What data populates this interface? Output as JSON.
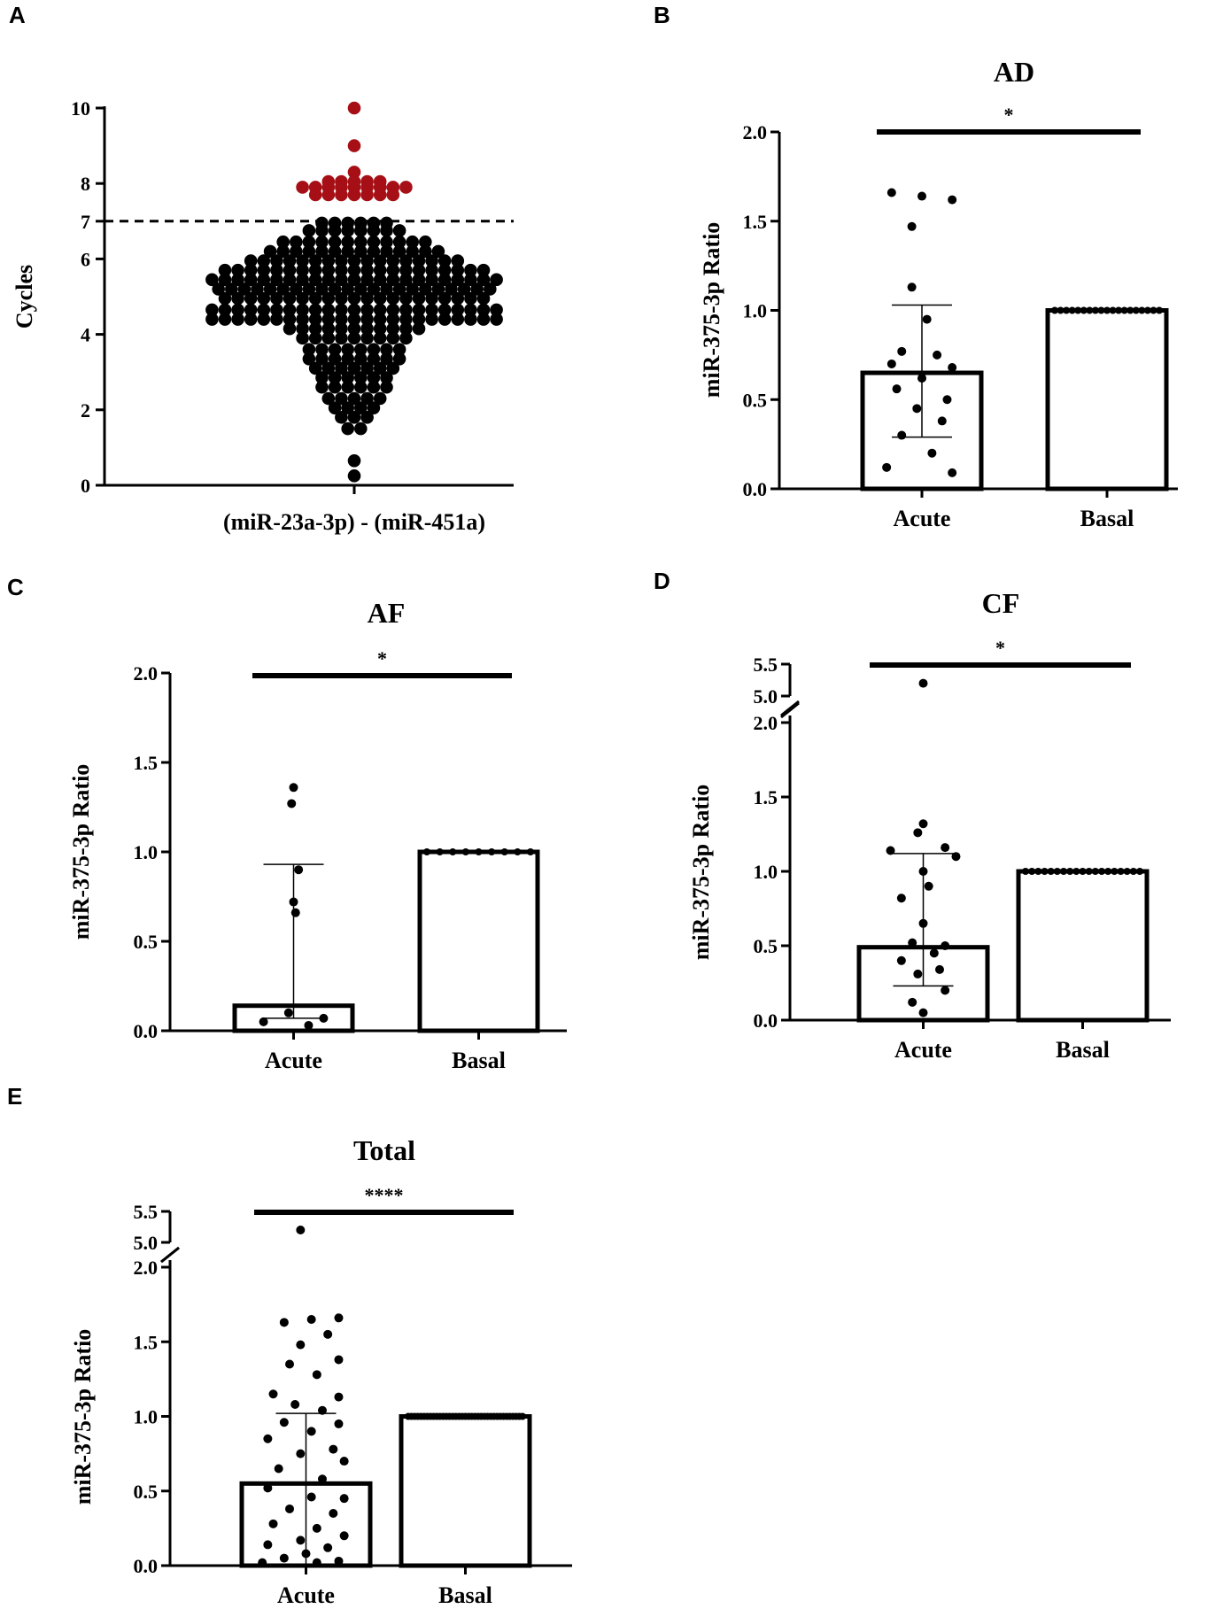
{
  "chart_data": [
    {
      "panel": "A",
      "type": "scatter",
      "title": "",
      "xlabel": "(miR-23a-3p) - (miR-451a)",
      "ylabel": "Cycles",
      "ylim": [
        0,
        10
      ],
      "yticks": [
        0,
        2,
        4,
        6,
        7,
        8,
        10
      ],
      "threshold": 7,
      "colors": {
        "below": "#000000",
        "above": "#a50f15"
      },
      "rows": [
        {
          "y": 10.0,
          "n": 1
        },
        {
          "y": 9.0,
          "n": 1
        },
        {
          "y": 8.3,
          "n": 1
        },
        {
          "y": 8.05,
          "n": 5
        },
        {
          "y": 7.9,
          "n": 9
        },
        {
          "y": 7.7,
          "n": 7
        },
        {
          "y": 6.95,
          "n": 6
        },
        {
          "y": 6.75,
          "n": 8
        },
        {
          "y": 6.45,
          "n": 12
        },
        {
          "y": 6.2,
          "n": 14
        },
        {
          "y": 5.95,
          "n": 17
        },
        {
          "y": 5.7,
          "n": 21
        },
        {
          "y": 5.45,
          "n": 23
        },
        {
          "y": 5.2,
          "n": 22
        },
        {
          "y": 4.95,
          "n": 21
        },
        {
          "y": 4.65,
          "n": 23
        },
        {
          "y": 4.4,
          "n": 23
        },
        {
          "y": 4.15,
          "n": 11
        },
        {
          "y": 3.9,
          "n": 9
        },
        {
          "y": 3.6,
          "n": 8
        },
        {
          "y": 3.35,
          "n": 8
        },
        {
          "y": 3.1,
          "n": 7
        },
        {
          "y": 2.85,
          "n": 6
        },
        {
          "y": 2.6,
          "n": 6
        },
        {
          "y": 2.3,
          "n": 5
        },
        {
          "y": 2.05,
          "n": 4
        },
        {
          "y": 1.8,
          "n": 3
        },
        {
          "y": 1.5,
          "n": 2
        },
        {
          "y": 0.65,
          "n": 1
        },
        {
          "y": 0.25,
          "n": 1
        }
      ]
    },
    {
      "panel": "B",
      "type": "bar",
      "title": "AD",
      "ylabel": "miR-375-3p Ratio",
      "categories": [
        "Acute",
        "Basal"
      ],
      "values": [
        0.65,
        1.0
      ],
      "error_low": [
        0.29,
        null
      ],
      "error_high": [
        1.03,
        null
      ],
      "ylim": [
        0,
        2.0
      ],
      "yticks": [
        "0.0",
        "0.5",
        "1.0",
        "1.5",
        "2.0"
      ],
      "significance": "*",
      "points": [
        {
          "v": 1.66,
          "dx": -0.3
        },
        {
          "v": 1.64,
          "dx": 0.0
        },
        {
          "v": 1.62,
          "dx": 0.3
        },
        {
          "v": 1.47,
          "dx": -0.1
        },
        {
          "v": 1.13,
          "dx": -0.1
        },
        {
          "v": 0.95,
          "dx": 0.05
        },
        {
          "v": 0.77,
          "dx": -0.2
        },
        {
          "v": 0.75,
          "dx": 0.15
        },
        {
          "v": 0.7,
          "dx": -0.3
        },
        {
          "v": 0.68,
          "dx": 0.3
        },
        {
          "v": 0.62,
          "dx": 0.0
        },
        {
          "v": 0.56,
          "dx": -0.25
        },
        {
          "v": 0.5,
          "dx": 0.25
        },
        {
          "v": 0.45,
          "dx": -0.05
        },
        {
          "v": 0.38,
          "dx": 0.2
        },
        {
          "v": 0.3,
          "dx": -0.2
        },
        {
          "v": 0.2,
          "dx": 0.1
        },
        {
          "v": 0.12,
          "dx": -0.35
        },
        {
          "v": 0.09,
          "dx": 0.3
        }
      ],
      "basal_n": 19
    },
    {
      "panel": "C",
      "type": "bar",
      "title": "AF",
      "ylabel": "miR-375-3p Ratio",
      "categories": [
        "Acute",
        "Basal"
      ],
      "values": [
        0.14,
        1.0
      ],
      "error_low": [
        0.07,
        null
      ],
      "error_high": [
        0.93,
        null
      ],
      "ylim": [
        0,
        2.0
      ],
      "yticks": [
        "0.0",
        "0.5",
        "1.0",
        "1.5",
        "2.0"
      ],
      "significance": "*",
      "points": [
        {
          "v": 1.36,
          "dx": 0.0
        },
        {
          "v": 1.27,
          "dx": -0.02
        },
        {
          "v": 0.9,
          "dx": 0.05
        },
        {
          "v": 0.72,
          "dx": 0.0
        },
        {
          "v": 0.66,
          "dx": 0.02
        },
        {
          "v": 0.1,
          "dx": -0.05
        },
        {
          "v": 0.07,
          "dx": 0.3
        },
        {
          "v": 0.05,
          "dx": -0.3
        },
        {
          "v": 0.03,
          "dx": 0.15
        }
      ],
      "basal_n": 9
    },
    {
      "panel": "D",
      "type": "bar",
      "title": "CF",
      "ylabel": "miR-375-3p Ratio",
      "categories": [
        "Acute",
        "Basal"
      ],
      "values": [
        0.49,
        1.0
      ],
      "error_low": [
        0.23,
        null
      ],
      "error_high": [
        1.12,
        null
      ],
      "ylim": [
        0,
        2.0
      ],
      "yticks": [
        "0.0",
        "0.5",
        "1.0",
        "1.5",
        "2.0"
      ],
      "broken_axis_ticks": [
        "5.0",
        "5.5"
      ],
      "significance": "*",
      "points": [
        {
          "v": 5.2,
          "dx": 0.0,
          "upper": true
        },
        {
          "v": 1.32,
          "dx": 0.0
        },
        {
          "v": 1.26,
          "dx": -0.05
        },
        {
          "v": 1.16,
          "dx": 0.2
        },
        {
          "v": 1.14,
          "dx": -0.3
        },
        {
          "v": 1.1,
          "dx": 0.3
        },
        {
          "v": 1.0,
          "dx": 0.0
        },
        {
          "v": 0.9,
          "dx": 0.05
        },
        {
          "v": 0.82,
          "dx": -0.2
        },
        {
          "v": 0.65,
          "dx": 0.0
        },
        {
          "v": 0.52,
          "dx": -0.1
        },
        {
          "v": 0.5,
          "dx": 0.2
        },
        {
          "v": 0.45,
          "dx": 0.1
        },
        {
          "v": 0.4,
          "dx": -0.2
        },
        {
          "v": 0.34,
          "dx": 0.15
        },
        {
          "v": 0.31,
          "dx": -0.05
        },
        {
          "v": 0.2,
          "dx": 0.2
        },
        {
          "v": 0.12,
          "dx": -0.1
        },
        {
          "v": 0.05,
          "dx": 0.0
        }
      ],
      "basal_n": 19
    },
    {
      "panel": "E",
      "type": "bar",
      "title": "Total",
      "ylabel": "miR-375-3p Ratio",
      "categories": [
        "Acute",
        "Basal"
      ],
      "values": [
        0.55,
        1.0
      ],
      "error_high": [
        1.02,
        null
      ],
      "ylim": [
        0,
        2.0
      ],
      "yticks": [
        "0.0",
        "0.5",
        "1.0",
        "1.5",
        "2.0"
      ],
      "broken_axis_ticks": [
        "5.0",
        "5.5"
      ],
      "significance": "****",
      "points": [
        {
          "v": 5.2,
          "dx": -0.05,
          "upper": true
        },
        {
          "v": 1.66,
          "dx": 0.3
        },
        {
          "v": 1.65,
          "dx": 0.05
        },
        {
          "v": 1.63,
          "dx": -0.2
        },
        {
          "v": 1.55,
          "dx": 0.2
        },
        {
          "v": 1.48,
          "dx": -0.05
        },
        {
          "v": 1.38,
          "dx": 0.3
        },
        {
          "v": 1.35,
          "dx": -0.15
        },
        {
          "v": 1.28,
          "dx": 0.1
        },
        {
          "v": 1.15,
          "dx": -0.3
        },
        {
          "v": 1.13,
          "dx": 0.3
        },
        {
          "v": 1.08,
          "dx": -0.1
        },
        {
          "v": 1.04,
          "dx": 0.15
        },
        {
          "v": 0.96,
          "dx": -0.2
        },
        {
          "v": 0.95,
          "dx": 0.3
        },
        {
          "v": 0.9,
          "dx": 0.05
        },
        {
          "v": 0.85,
          "dx": -0.35
        },
        {
          "v": 0.78,
          "dx": 0.25
        },
        {
          "v": 0.75,
          "dx": -0.05
        },
        {
          "v": 0.7,
          "dx": 0.35
        },
        {
          "v": 0.65,
          "dx": -0.25
        },
        {
          "v": 0.58,
          "dx": 0.15
        },
        {
          "v": 0.52,
          "dx": -0.35
        },
        {
          "v": 0.46,
          "dx": 0.05
        },
        {
          "v": 0.45,
          "dx": 0.35
        },
        {
          "v": 0.38,
          "dx": -0.15
        },
        {
          "v": 0.35,
          "dx": 0.25
        },
        {
          "v": 0.28,
          "dx": -0.3
        },
        {
          "v": 0.25,
          "dx": 0.1
        },
        {
          "v": 0.2,
          "dx": 0.35
        },
        {
          "v": 0.17,
          "dx": -0.05
        },
        {
          "v": 0.14,
          "dx": -0.35
        },
        {
          "v": 0.12,
          "dx": 0.2
        },
        {
          "v": 0.08,
          "dx": 0.0
        },
        {
          "v": 0.05,
          "dx": -0.2
        },
        {
          "v": 0.03,
          "dx": 0.3
        },
        {
          "v": 0.02,
          "dx": -0.4
        },
        {
          "v": 0.02,
          "dx": 0.1
        }
      ],
      "basal_n": 37
    }
  ]
}
